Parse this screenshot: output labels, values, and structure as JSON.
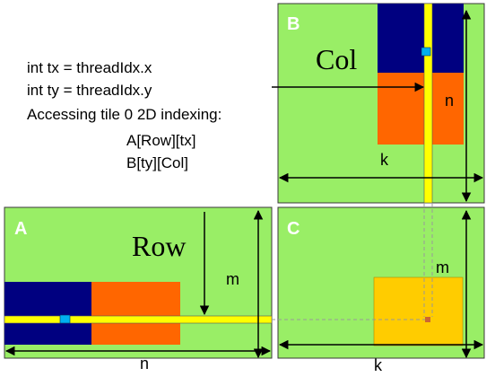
{
  "code": {
    "line1": "int tx = threadIdx.x",
    "line2": "int ty = threadIdx.y",
    "line3": "Accessing tile 0 2D indexing:",
    "line4": "A[Row][tx]",
    "line5": "B[ty][Col]"
  },
  "matrices": {
    "a": {
      "label": "A",
      "dim_vertical": "m",
      "dim_horizontal": "n",
      "index_label": "Row"
    },
    "b": {
      "label": "B",
      "dim_vertical": "n",
      "dim_horizontal": "k",
      "index_label": "Col"
    },
    "c": {
      "label": "C",
      "dim_vertical": "m",
      "dim_horizontal": "k"
    }
  },
  "colors": {
    "matrix_fill": "#99ee66",
    "matrix_border": "#3a3a3a",
    "tile_navy": "#000080",
    "tile_orange": "#ff6600",
    "highlight_yellow": "#ffff00",
    "element_cyan": "#00b0f0",
    "result_tile": "#ffcc00",
    "result_dot": "#cc6633",
    "guide_gray": "#999999"
  }
}
